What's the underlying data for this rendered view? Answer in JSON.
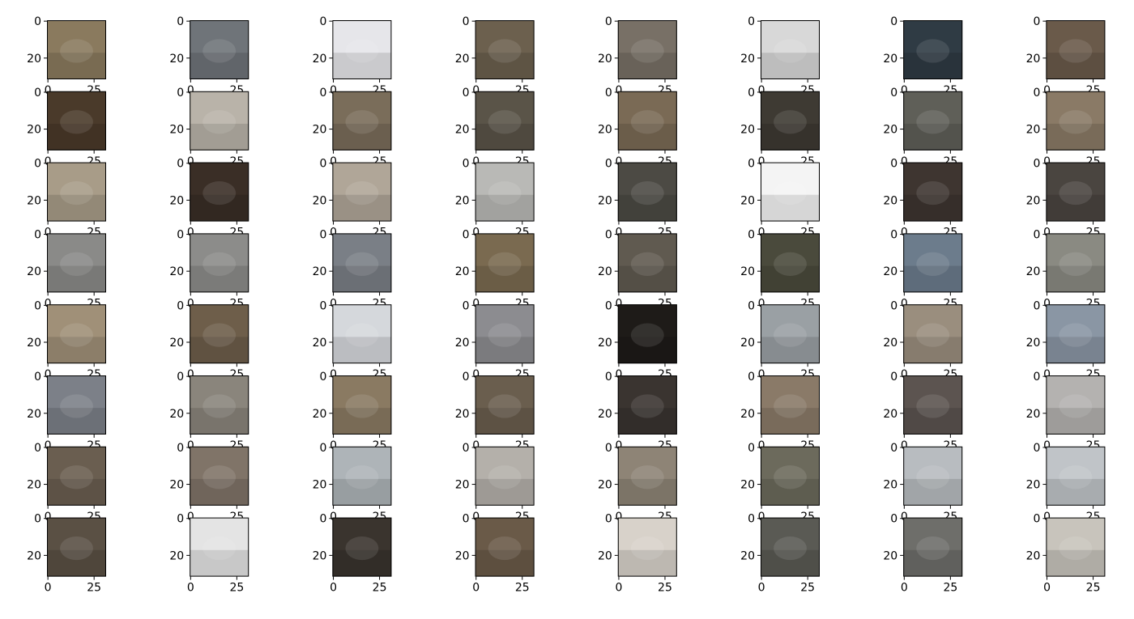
{
  "chart_data": {
    "type": "image_grid",
    "rows": 8,
    "cols": 8,
    "image_size": [
      32,
      32
    ],
    "x_ticks": [
      0,
      25
    ],
    "y_ticks": [
      0,
      20
    ],
    "x_tick_labels": [
      "0",
      "25"
    ],
    "y_tick_labels": [
      "0",
      "20"
    ],
    "xlim": [
      -0.5,
      31.5
    ],
    "ylim": [
      31.5,
      -0.5
    ],
    "grid": false,
    "tile_colors": [
      [
        "#8a7a5e",
        "#6f7479",
        "#e6e6ea",
        "#6c604e",
        "#787066",
        "#d8d8d8",
        "#2f3b44",
        "#6a5a4a"
      ],
      [
        "#4a3a2a",
        "#b9b3a9",
        "#7a6d5a",
        "#5a5448",
        "#7a6a55",
        "#3e3a33",
        "#5f5f58",
        "#8a7a66"
      ],
      [
        "#a89c88",
        "#3a2e26",
        "#b0a698",
        "#b9b9b6",
        "#4c4a44",
        "#f4f4f4",
        "#3e3530",
        "#4a4540"
      ],
      [
        "#8a8a88",
        "#8c8c8a",
        "#7a7f86",
        "#7a6a50",
        "#605a50",
        "#4a4a3c",
        "#6c7c8c",
        "#8a8a82"
      ],
      [
        "#a09078",
        "#6e5e4a",
        "#d5d8dc",
        "#8c8c90",
        "#1e1b18",
        "#9aa0a4",
        "#9a8e7e",
        "#8a96a4"
      ],
      [
        "#7c8088",
        "#8a857c",
        "#8a7a62",
        "#6a5e4e",
        "#3a3430",
        "#8a7a68",
        "#5c5450",
        "#b4b2b0"
      ],
      [
        "#6a5e50",
        "#807468",
        "#aeb4b8",
        "#b4b0aa",
        "#8e8476",
        "#6c6a5c",
        "#b8bcc0",
        "#c0c4c8"
      ],
      [
        "#5a5044",
        "#e4e4e4",
        "#3a342e",
        "#6a5a48",
        "#d8d2ca",
        "#5a5a54",
        "#6e6e6a",
        "#c8c4bc"
      ]
    ]
  }
}
